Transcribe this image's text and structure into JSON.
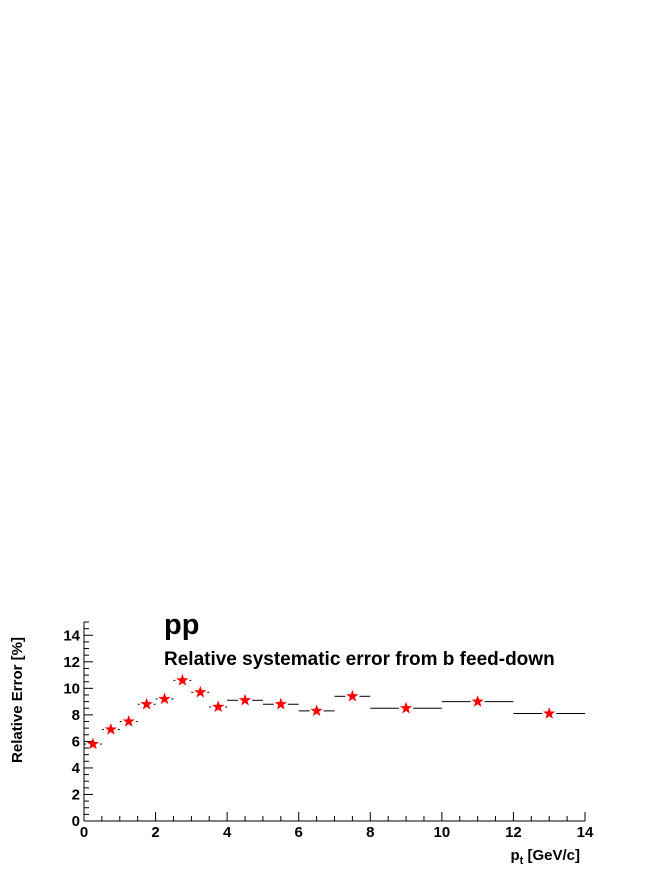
{
  "chart_data": {
    "type": "scatter",
    "title": "pp",
    "subtitle": "Relative systematic error from b feed-down",
    "xlabel_main": "p",
    "xlabel_sub": "t",
    "xlabel_rest": " [GeV/c]",
    "ylabel": "Relative Error [%]",
    "xlim": [
      0,
      14
    ],
    "ylim": [
      0,
      15
    ],
    "x_ticks": [
      "0",
      "2",
      "4",
      "6",
      "8",
      "10",
      "12",
      "14"
    ],
    "y_ticks": [
      "0",
      "2",
      "4",
      "6",
      "8",
      "10",
      "12",
      "14"
    ],
    "marker": "star",
    "marker_color": "#ff0000",
    "line_color": "#000000",
    "bins": [
      {
        "xlow": 0.0,
        "xhigh": 0.5,
        "y": 5.8
      },
      {
        "xlow": 0.5,
        "xhigh": 1.0,
        "y": 6.9
      },
      {
        "xlow": 1.0,
        "xhigh": 1.5,
        "y": 7.5
      },
      {
        "xlow": 1.5,
        "xhigh": 2.0,
        "y": 8.8
      },
      {
        "xlow": 2.0,
        "xhigh": 2.5,
        "y": 9.2
      },
      {
        "xlow": 2.5,
        "xhigh": 3.0,
        "y": 10.6
      },
      {
        "xlow": 3.0,
        "xhigh": 3.5,
        "y": 9.7
      },
      {
        "xlow": 3.5,
        "xhigh": 4.0,
        "y": 8.6
      },
      {
        "xlow": 4.0,
        "xhigh": 5.0,
        "y": 9.1
      },
      {
        "xlow": 5.0,
        "xhigh": 6.0,
        "y": 8.8
      },
      {
        "xlow": 6.0,
        "xhigh": 7.0,
        "y": 8.3
      },
      {
        "xlow": 7.0,
        "xhigh": 8.0,
        "y": 9.4
      },
      {
        "xlow": 8.0,
        "xhigh": 10.0,
        "y": 8.5
      },
      {
        "xlow": 10.0,
        "xhigh": 12.0,
        "y": 9.0
      },
      {
        "xlow": 12.0,
        "xhigh": 14.0,
        "y": 8.1
      }
    ]
  }
}
